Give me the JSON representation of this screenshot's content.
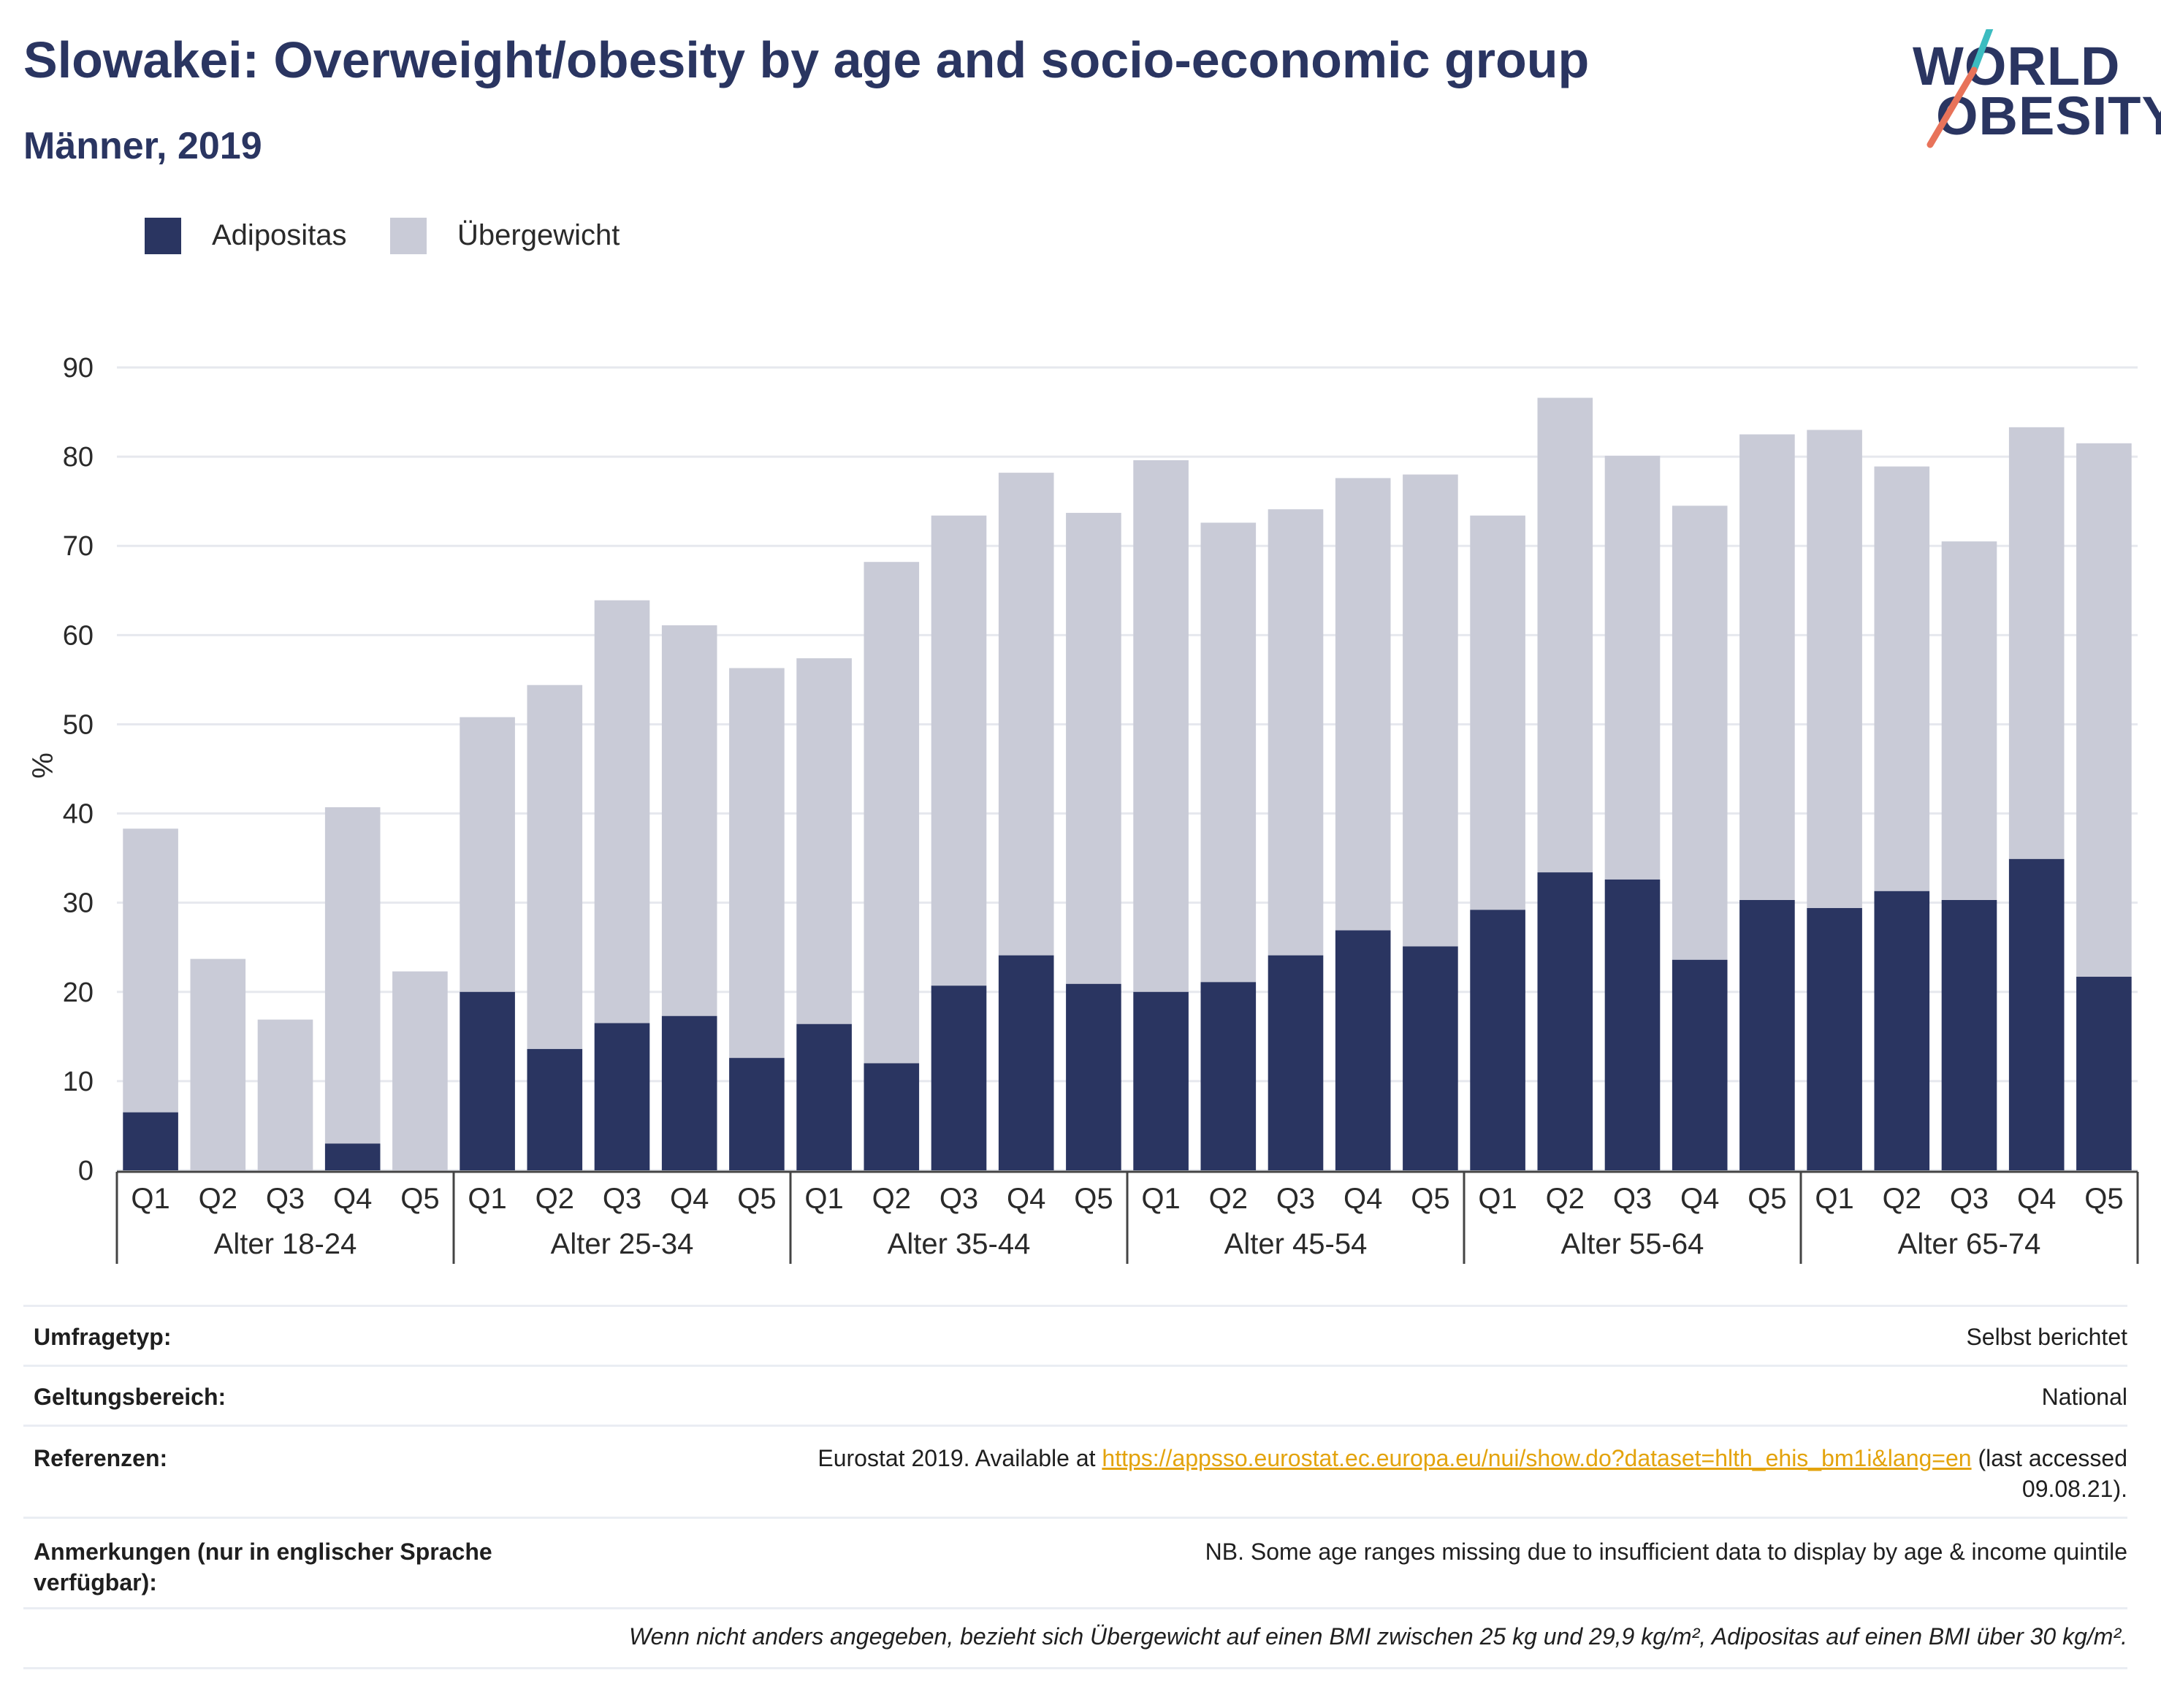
{
  "header": {
    "title": "Slowakei: Overweight/obesity by age and socio-economic group",
    "subtitle": "Männer, 2019"
  },
  "logo": {
    "line1": "WORLD",
    "line2": "OBESITY"
  },
  "colors": {
    "obesity": "#2a3561",
    "overweight": "#c9cbd7",
    "text": "#2a3561",
    "grid": "#e6e8ee",
    "link": "#e3a30c",
    "logo_teal": "#3cbcc0",
    "logo_coral": "#e8735a"
  },
  "legend": [
    {
      "label": "Adipositas",
      "color": "#2a3561"
    },
    {
      "label": "Übergewicht",
      "color": "#c9cbd7"
    }
  ],
  "chart_data": {
    "type": "bar",
    "stacked": true,
    "ylabel": "%",
    "ylim": [
      0,
      90
    ],
    "yticks": [
      0,
      10,
      20,
      30,
      40,
      50,
      60,
      70,
      80,
      90
    ],
    "grid": true,
    "legend_position": "top-left",
    "groups": [
      "Alter 18-24",
      "Alter 25-34",
      "Alter 35-44",
      "Alter 45-54",
      "Alter 55-64",
      "Alter 65-74"
    ],
    "categories": [
      "Q1",
      "Q2",
      "Q3",
      "Q4",
      "Q5"
    ],
    "series": [
      {
        "name": "Adipositas",
        "values": [
          [
            6.5,
            0,
            0,
            3.0,
            0
          ],
          [
            20.0,
            13.6,
            16.5,
            17.3,
            12.6
          ],
          [
            16.4,
            12.0,
            20.7,
            24.1,
            20.9
          ],
          [
            20.0,
            21.1,
            24.1,
            26.9,
            25.1
          ],
          [
            29.2,
            33.4,
            32.6,
            23.6,
            30.3
          ],
          [
            29.4,
            31.3,
            30.3,
            34.9,
            21.7
          ]
        ]
      },
      {
        "name": "Übergewicht",
        "values": [
          [
            31.8,
            23.7,
            16.9,
            37.7,
            22.3
          ],
          [
            30.8,
            40.8,
            47.4,
            43.8,
            43.7
          ],
          [
            41.0,
            56.2,
            52.7,
            54.1,
            52.8
          ],
          [
            59.6,
            51.5,
            50.0,
            50.7,
            52.9
          ],
          [
            44.2,
            53.2,
            47.5,
            50.9,
            52.2
          ],
          [
            53.6,
            47.6,
            40.2,
            48.4,
            59.8
          ]
        ]
      }
    ]
  },
  "info": {
    "rows": [
      {
        "label": "Umfragetyp:",
        "value": "Selbst berichtet"
      },
      {
        "label": "Geltungsbereich:",
        "value": "National"
      },
      {
        "label": "Referenzen:",
        "value_prefix": "Eurostat 2019. Available at ",
        "link": "https://appsso.eurostat.ec.europa.eu/nui/show.do?dataset=hlth_ehis_bm1i&lang=en",
        "value_suffix": " (last accessed",
        "value_line2": "09.08.21)."
      },
      {
        "label_line1": "Anmerkungen (nur in englischer Sprache",
        "label_line2": "verfügbar):",
        "value": "NB. Some age ranges missing due to insufficient data to display by age & income quintile"
      }
    ],
    "footnote": "Wenn nicht anders angegeben, bezieht sich Übergewicht auf einen BMI zwischen 25 kg und 29,9 kg/m², Adipositas auf einen BMI über 30 kg/m²."
  }
}
